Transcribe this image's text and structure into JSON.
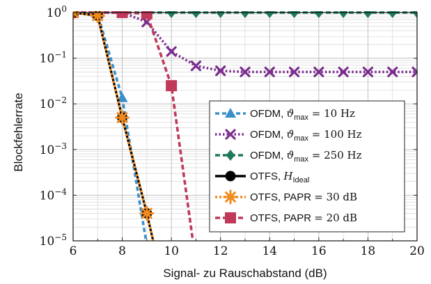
{
  "chart_data": {
    "type": "line",
    "title": "",
    "xlabel": "Signal- zu Rauschabstand (dB)",
    "ylabel": "Blockfehlerrate",
    "xlim": [
      6,
      20
    ],
    "ylim": [
      1e-05,
      1
    ],
    "yscale": "log",
    "xticks": [
      "6",
      "8",
      "10",
      "12",
      "14",
      "16",
      "18",
      "20"
    ],
    "yticks": [
      {
        "mantissa": "10",
        "exp": "0"
      },
      {
        "mantissa": "10",
        "exp": "−1"
      },
      {
        "mantissa": "10",
        "exp": "−2"
      },
      {
        "mantissa": "10",
        "exp": "−3"
      },
      {
        "mantissa": "10",
        "exp": "−4"
      },
      {
        "mantissa": "10",
        "exp": "−5"
      }
    ],
    "grid": true,
    "legend_position": "bottom-right",
    "series": [
      {
        "name": "OFDM, ϑmax = 10 Hz",
        "legend": {
          "pre": "OFDM, ",
          "sym": "ϑ",
          "sub": "max",
          "post": " = 10 Hz"
        },
        "color": "#3a8fc9",
        "dash": "6,4",
        "marker": "triangle",
        "x": [
          6,
          7,
          8,
          9
        ],
        "y": [
          1.0,
          0.92,
          0.0135,
          8e-06
        ]
      },
      {
        "name": "OFDM, ϑmax = 100 Hz",
        "legend": {
          "pre": "OFDM, ",
          "sym": "ϑ",
          "sub": "max",
          "post": " = 100 Hz"
        },
        "color": "#7b2d8e",
        "dash": "2.5,3",
        "marker": "x",
        "x": [
          6,
          7,
          8,
          9,
          10,
          11,
          12,
          13,
          14,
          15,
          16,
          17,
          18,
          19,
          20
        ],
        "y": [
          1.0,
          1.0,
          1.0,
          0.62,
          0.14,
          0.068,
          0.053,
          0.05,
          0.05,
          0.05,
          0.05,
          0.05,
          0.05,
          0.05,
          0.05
        ]
      },
      {
        "name": "OFDM, ϑmax = 250 Hz",
        "legend": {
          "pre": "OFDM, ",
          "sym": "ϑ",
          "sub": "max",
          "post": " = 250 Hz"
        },
        "color": "#1f7a5a",
        "dash": "7,4",
        "marker": "diamond",
        "x": [
          6,
          7,
          8,
          9,
          10,
          11,
          12,
          13,
          14,
          15,
          16,
          17,
          18,
          19,
          20
        ],
        "y": [
          1,
          1,
          1,
          1,
          1,
          1,
          1,
          1,
          1,
          1,
          1,
          1,
          1,
          1,
          1
        ]
      },
      {
        "name": "OTFS, HIdeal",
        "legend": {
          "pre": "OTFS, ",
          "sym": "H",
          "sub": "Ideal",
          "post": ""
        },
        "color": "#000000",
        "dash": "",
        "marker": "circle",
        "x": [
          6,
          7,
          8,
          9,
          9.3
        ],
        "y": [
          1.0,
          0.85,
          0.005,
          4e-05,
          8e-06
        ]
      },
      {
        "name": "OTFS, PAPR = 30 dB",
        "legend": {
          "pre": "OTFS, PAPR ",
          "sym": "",
          "sub": "",
          "post": "= 30 dB"
        },
        "color": "#f08a1e",
        "dash": "3,3",
        "marker": "star",
        "x": [
          6,
          7,
          8,
          9,
          9.3
        ],
        "y": [
          1.0,
          0.85,
          0.005,
          4e-05,
          8e-06
        ]
      },
      {
        "name": "OTFS, PAPR = 20 dB",
        "legend": {
          "pre": "OTFS, PAPR ",
          "sym": "",
          "sub": "",
          "post": "= 20 dB"
        },
        "color": "#c0395a",
        "dash": "7,4",
        "marker": "square",
        "x": [
          6,
          7,
          8,
          9,
          10,
          10.9
        ],
        "y": [
          1.0,
          1.0,
          1.0,
          0.95,
          0.025,
          8e-06
        ]
      }
    ]
  }
}
